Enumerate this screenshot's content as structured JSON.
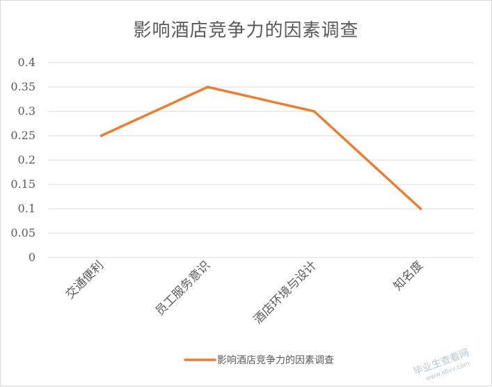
{
  "chart_data": {
    "type": "line",
    "title": "影响酒店竞争力的因素调查",
    "categories": [
      "交通便利",
      "员工服务意识",
      "酒店环境与设计",
      "知名度"
    ],
    "series": [
      {
        "name": "影响酒店竞争力的因素调查",
        "values": [
          0.25,
          0.35,
          0.3,
          0.1
        ],
        "color": "#ed7d31"
      }
    ],
    "ylim": [
      0,
      0.4
    ],
    "yticks": [
      "0",
      "0.05",
      "0.1",
      "0.15",
      "0.2",
      "0.25",
      "0.3",
      "0.35",
      "0.4"
    ],
    "grid": true,
    "legend_position": "bottom",
    "gridline_color": "#d9d9d9",
    "text_color": "#595959"
  },
  "watermark": {
    "text": "毕业生查看网",
    "subtext": "www.sbvv.com"
  }
}
